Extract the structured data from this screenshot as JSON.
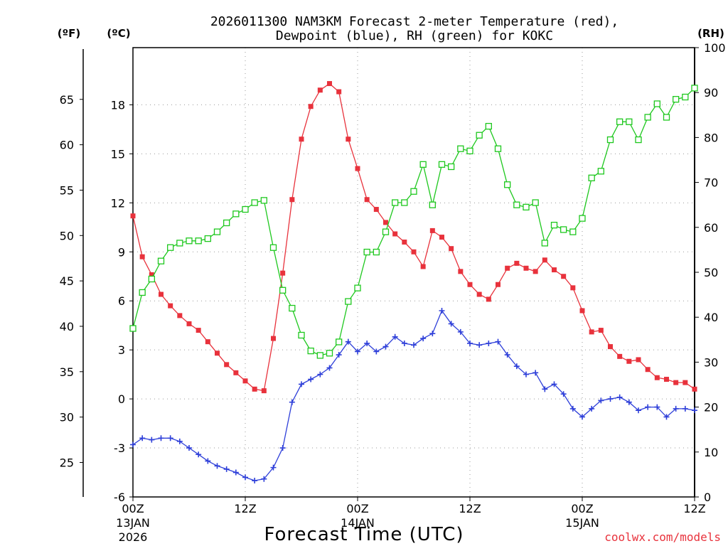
{
  "chart_data": {
    "type": "line",
    "title_line1": "2026011300 NAM3KM Forecast 2-meter Temperature (red),",
    "title_line2": "Dewpoint (blue), RH (green) for KOKC",
    "xlabel": "Forecast Time (UTC)",
    "watermark": "coolwx.com/models",
    "unit_f": "(ºF)",
    "unit_c": "(ºC)",
    "unit_rh": "(RH)",
    "xlim": [
      0,
      60
    ],
    "ylim_c": [
      -6,
      21.5
    ],
    "ylim_rh": [
      0,
      100
    ],
    "x_ticks": [
      {
        "x": 0,
        "l1": "00Z",
        "l2": "13JAN",
        "l3": "2026"
      },
      {
        "x": 12,
        "l1": "12Z",
        "l2": "",
        "l3": ""
      },
      {
        "x": 24,
        "l1": "00Z",
        "l2": "14JAN",
        "l3": ""
      },
      {
        "x": 36,
        "l1": "12Z",
        "l2": "",
        "l3": ""
      },
      {
        "x": 48,
        "l1": "00Z",
        "l2": "15JAN",
        "l3": ""
      },
      {
        "x": 60,
        "l1": "12Z",
        "l2": "",
        "l3": ""
      }
    ],
    "c_ticks": [
      "-6",
      "-3",
      "0",
      "3",
      "6",
      "9",
      "12",
      "15",
      "18"
    ],
    "c_tick_values": [
      -6,
      -3,
      0,
      3,
      6,
      9,
      12,
      15,
      18
    ],
    "f_ticks": [
      "25",
      "30",
      "35",
      "40",
      "45",
      "50",
      "55",
      "60",
      "65"
    ],
    "f_tick_values": [
      25,
      30,
      35,
      40,
      45,
      50,
      55,
      60,
      65
    ],
    "rh_ticks": [
      "0",
      "10",
      "20",
      "30",
      "40",
      "50",
      "60",
      "70",
      "80",
      "90",
      "100"
    ],
    "rh_tick_values": [
      0,
      10,
      20,
      30,
      40,
      50,
      60,
      70,
      80,
      90,
      100
    ],
    "series": [
      {
        "name": "Temperature",
        "axis": "c",
        "color": "#e8323c",
        "marker": "filled-square",
        "x": [
          0,
          1,
          2,
          3,
          4,
          5,
          6,
          7,
          8,
          9,
          10,
          11,
          12,
          13,
          14,
          15,
          16,
          17,
          18,
          19,
          20,
          21,
          22,
          23,
          24,
          25,
          26,
          27,
          28,
          29,
          30,
          31,
          32,
          33,
          34,
          35,
          36,
          37,
          38,
          39,
          40,
          41,
          42,
          43,
          44,
          45,
          46,
          47,
          48,
          49,
          50,
          51,
          52,
          53,
          54,
          55,
          56,
          57,
          58,
          59,
          60
        ],
        "values": [
          11.2,
          8.7,
          7.6,
          6.4,
          5.7,
          5.1,
          4.6,
          4.2,
          3.5,
          2.8,
          2.1,
          1.6,
          1.1,
          0.6,
          0.5,
          3.7,
          7.7,
          12.2,
          15.9,
          17.9,
          18.9,
          19.3,
          18.8,
          15.9,
          14.1,
          12.2,
          11.6,
          10.8,
          10.1,
          9.6,
          9.0,
          8.1,
          10.3,
          9.9,
          9.2,
          7.8,
          7.0,
          6.4,
          6.1,
          7.0,
          8.0,
          8.3,
          8.0,
          7.8,
          8.5,
          7.9,
          7.5,
          6.8,
          5.4,
          4.1,
          4.2,
          3.2,
          2.6,
          2.3,
          2.4,
          1.8,
          1.3,
          1.2,
          1.0,
          1.0,
          0.6
        ]
      },
      {
        "name": "Dewpoint",
        "axis": "c",
        "color": "#2e3fd9",
        "marker": "plus",
        "x": [
          0,
          1,
          2,
          3,
          4,
          5,
          6,
          7,
          8,
          9,
          10,
          11,
          12,
          13,
          14,
          15,
          16,
          17,
          18,
          19,
          20,
          21,
          22,
          23,
          24,
          25,
          26,
          27,
          28,
          29,
          30,
          31,
          32,
          33,
          34,
          35,
          36,
          37,
          38,
          39,
          40,
          41,
          42,
          43,
          44,
          45,
          46,
          47,
          48,
          49,
          50,
          51,
          52,
          53,
          54,
          55,
          56,
          57,
          58,
          59,
          60
        ],
        "values": [
          -2.8,
          -2.4,
          -2.5,
          -2.4,
          -2.4,
          -2.6,
          -3.0,
          -3.4,
          -3.8,
          -4.1,
          -4.3,
          -4.5,
          -4.8,
          -5.0,
          -4.9,
          -4.2,
          -3.0,
          -0.2,
          0.9,
          1.2,
          1.5,
          1.9,
          2.7,
          3.5,
          2.9,
          3.4,
          2.9,
          3.2,
          3.8,
          3.4,
          3.3,
          3.7,
          4.0,
          5.4,
          4.6,
          4.1,
          3.4,
          3.3,
          3.4,
          3.5,
          2.7,
          2.0,
          1.5,
          1.6,
          0.6,
          0.9,
          0.3,
          -0.6,
          -1.1,
          -0.6,
          -0.1,
          0.0,
          0.1,
          -0.2,
          -0.7,
          -0.5,
          -0.5,
          -1.1,
          -0.6,
          -0.6,
          -0.7
        ]
      },
      {
        "name": "RH",
        "axis": "rh",
        "color": "#1ec81e",
        "marker": "open-square",
        "x": [
          0,
          1,
          2,
          3,
          4,
          5,
          6,
          7,
          8,
          9,
          10,
          11,
          12,
          13,
          14,
          15,
          16,
          17,
          18,
          19,
          20,
          21,
          22,
          23,
          24,
          25,
          26,
          27,
          28,
          29,
          30,
          31,
          32,
          33,
          34,
          35,
          36,
          37,
          38,
          39,
          40,
          41,
          42,
          43,
          44,
          45,
          46,
          47,
          48,
          49,
          50,
          51,
          52,
          53,
          54,
          55,
          56,
          57,
          58,
          59,
          60
        ],
        "values": [
          37.5,
          45.5,
          48.5,
          52.5,
          55.5,
          56.5,
          57.0,
          57.0,
          57.5,
          59.0,
          61.0,
          63.0,
          64.0,
          65.5,
          66.0,
          55.5,
          46.0,
          42.0,
          36.0,
          32.5,
          31.5,
          32.0,
          34.5,
          43.5,
          46.5,
          54.5,
          54.5,
          59.0,
          65.5,
          65.5,
          68.0,
          74.0,
          65.0,
          74.0,
          73.5,
          77.5,
          77.0,
          80.5,
          82.5,
          77.5,
          69.5,
          65.0,
          64.5,
          65.5,
          56.5,
          60.5,
          59.5,
          59.0,
          62.0,
          71.0,
          72.5,
          79.5,
          83.5,
          83.5,
          79.5,
          84.5,
          87.5,
          84.5,
          88.5,
          89.0,
          91.0
        ]
      }
    ]
  }
}
